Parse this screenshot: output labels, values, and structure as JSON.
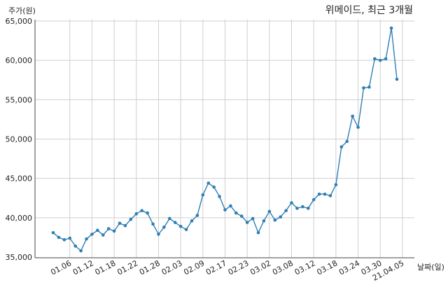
{
  "chart_data": {
    "type": "line",
    "title": "위메이드, 최근 3개월",
    "xlabel": "날짜(일)",
    "ylabel": "주가(원)",
    "ylim": [
      35000,
      65000
    ],
    "yticks": [
      35000,
      40000,
      45000,
      50000,
      55000,
      60000,
      65000
    ],
    "ytick_labels": [
      "35,000",
      "40,000",
      "45,000",
      "50,000",
      "55,000",
      "60,000",
      "65,000"
    ],
    "xtick_indices": [
      3,
      7,
      11,
      15,
      19,
      23,
      27,
      31,
      35,
      39,
      43,
      47,
      51,
      55,
      59,
      63
    ],
    "xtick_labels": [
      "01.06",
      "01.12",
      "01.18",
      "01.22",
      "01.28",
      "02.03",
      "02.09",
      "02.17",
      "02.23",
      "03.02",
      "03.08",
      "03.12",
      "03.18",
      "03.24",
      "03.30",
      "21.04.05"
    ],
    "grid": true,
    "color": "#2f7fb5",
    "series": [
      {
        "values": [
          38100,
          37500,
          37200,
          37400,
          36400,
          35800,
          37300,
          37900,
          38400,
          37800,
          38600,
          38300,
          39300,
          39000,
          39800,
          40500,
          40900,
          40600,
          39200,
          37900,
          38800,
          39900,
          39400,
          38900,
          38500,
          39600,
          40300,
          42900,
          44400,
          43900,
          42700,
          41000,
          41500,
          40600,
          40200,
          39400,
          39900,
          38100,
          39600,
          40800,
          39700,
          40100,
          40900,
          41900,
          41200,
          41400,
          41200,
          42300,
          43000,
          43000,
          42800,
          44200,
          49000,
          49700,
          52900,
          51500,
          56500,
          56600,
          60200,
          60000,
          60200,
          64100,
          57600
        ]
      }
    ]
  }
}
